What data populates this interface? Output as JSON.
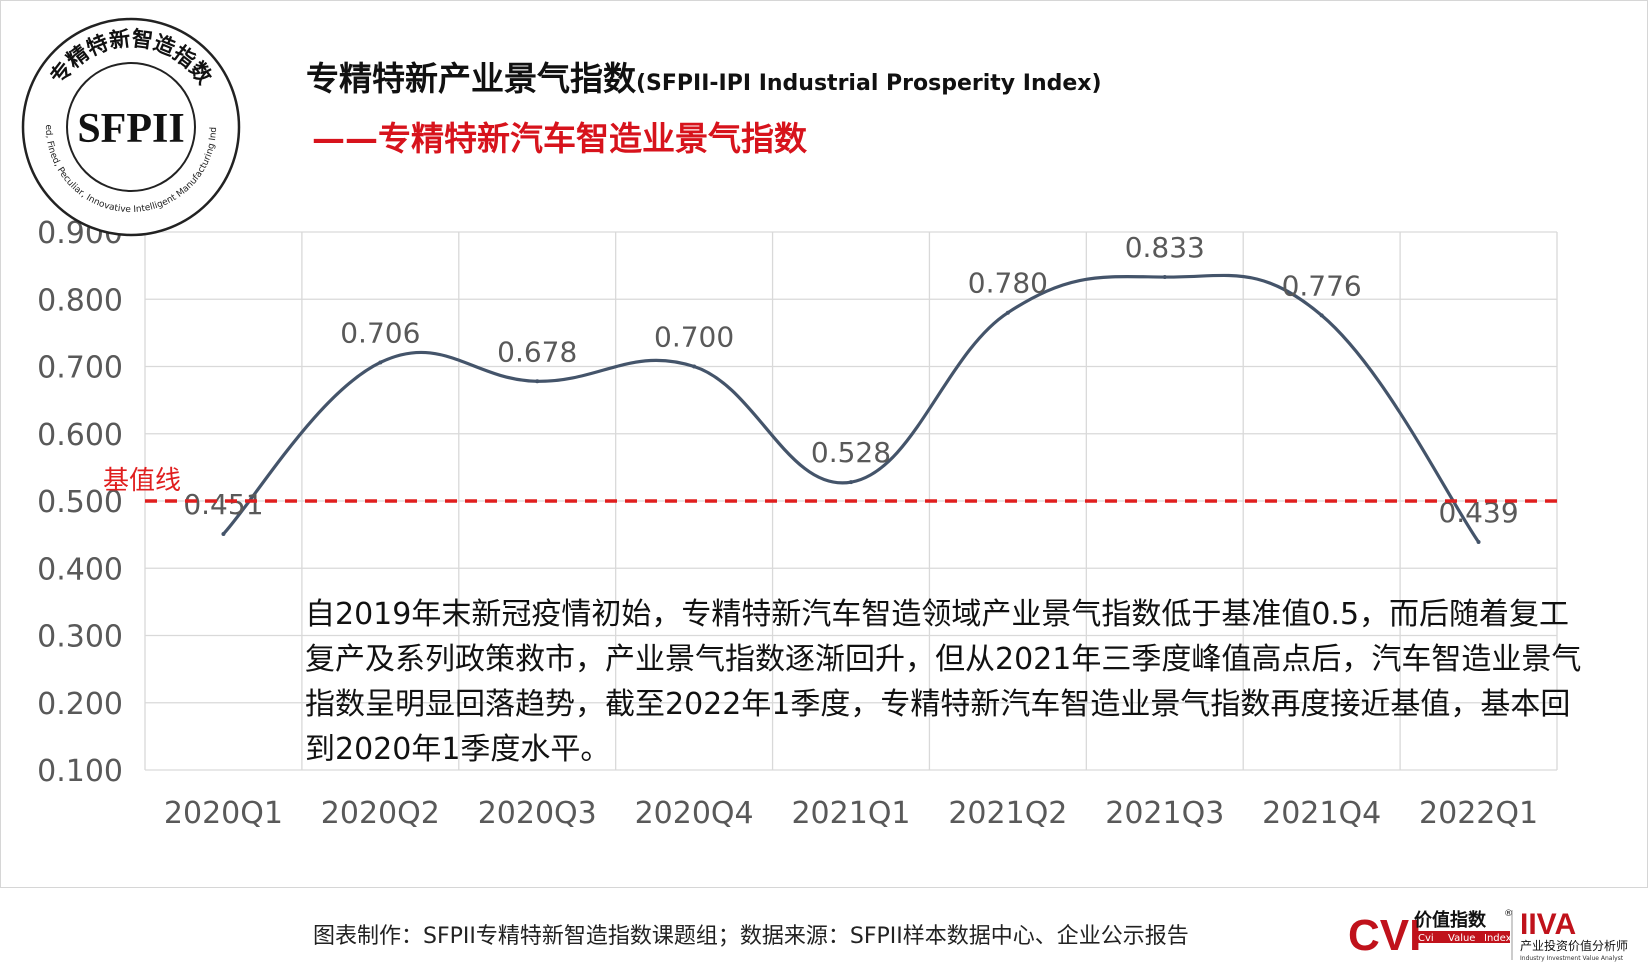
{
  "header": {
    "title_cn": "专精特新产业景气指数",
    "title_en": "(SFPII-IPI Industrial Prosperity Index)",
    "subtitle": "——专精特新汽车智造业景气指数"
  },
  "stamp": {
    "text": "SFPII",
    "ring_top": "专精特新智造指数",
    "ring_bottom": "Specialized, Fined, Peculiar, Innovative Intelligent Manufacturing Index (SFPII)"
  },
  "chart_data": {
    "type": "line",
    "title": "",
    "xlabel": "",
    "ylabel": "",
    "categories": [
      "2020Q1",
      "2020Q2",
      "2020Q3",
      "2020Q4",
      "2021Q1",
      "2021Q2",
      "2021Q3",
      "2021Q4",
      "2022Q1"
    ],
    "series": [
      {
        "values": [
          0.451,
          0.706,
          0.678,
          0.7,
          0.528,
          0.78,
          0.833,
          0.776,
          0.439
        ]
      }
    ],
    "data_labels": [
      "0.451",
      "0.706",
      "0.678",
      "0.700",
      "0.528",
      "0.780",
      "0.833",
      "0.776",
      "0.439"
    ],
    "ylim": [
      0.1,
      0.9
    ],
    "yticks": [
      "0.100",
      "0.200",
      "0.300",
      "0.400",
      "0.500",
      "0.600",
      "0.700",
      "0.800",
      "0.900"
    ],
    "grid": true,
    "baseline": {
      "value": 0.5,
      "label": "基值线"
    },
    "colors": {
      "line": "#44546a",
      "baseline": "#e01e1e",
      "grid": "#d9d9d9",
      "text": "#595959"
    }
  },
  "annotation": "自2019年末新冠疫情初始，专精特新汽车智造领域产业景气指数低于基准值0.5，而后随着复工复产及系列政策救市，产业景气指数逐渐回升，但从2021年三季度峰值高点后，汽车智造业景气指数呈明显回落趋势，截至2022年1季度，专精特新汽车智造业景气指数再度接近基值，基本回到2020年1季度水平。",
  "footer": "图表制作：SFPII专精特新智造指数课题组；数据来源：SFPII样本数据中心、企业公示报告",
  "logos": {
    "cvi": {
      "mark": "CVI",
      "name": "价值指数",
      "reg": "®",
      "sub": [
        "Cvi",
        "Value",
        "Index"
      ]
    },
    "iiva": {
      "mark": "IIVA",
      "name": "产业投资价值分析师",
      "sub": "Industry Investment Value Analyst"
    }
  }
}
